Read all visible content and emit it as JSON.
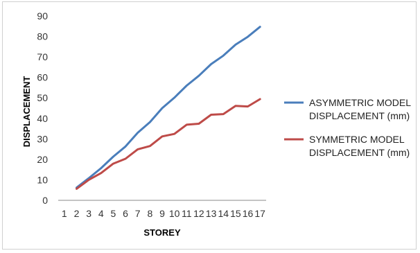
{
  "chart_data": {
    "type": "line",
    "title": "",
    "xlabel": "STOREY",
    "ylabel": "DISPLACEMENT",
    "categories": [
      "1",
      "2",
      "3",
      "4",
      "5",
      "6",
      "7",
      "8",
      "9",
      "10",
      "11",
      "12",
      "13",
      "14",
      "15",
      "16",
      "17"
    ],
    "ylim": [
      0,
      90
    ],
    "yticks": [
      0,
      10,
      20,
      30,
      40,
      50,
      60,
      70,
      80,
      90
    ],
    "grid": false,
    "legend_position": "right",
    "series": [
      {
        "name_line1": "ASYMMETRIC MODEL",
        "name_line2": "DISPLACEMENT (mm)",
        "color": "#4a7ebb",
        "values": [
          null,
          6.2,
          10.8,
          15.7,
          21.3,
          26.3,
          33.0,
          38.2,
          45.0,
          50.1,
          56.0,
          60.8,
          66.5,
          70.6,
          76.0,
          79.8,
          84.7
        ]
      },
      {
        "name_line1": "SYMMETRIC MODEL",
        "name_line2": "DISPLACEMENT (mm)",
        "color": "#be4b48",
        "values": [
          null,
          5.6,
          10.0,
          13.3,
          17.9,
          20.3,
          24.9,
          26.5,
          31.2,
          32.4,
          36.9,
          37.4,
          41.8,
          42.1,
          46.1,
          45.8,
          49.4
        ]
      }
    ]
  }
}
